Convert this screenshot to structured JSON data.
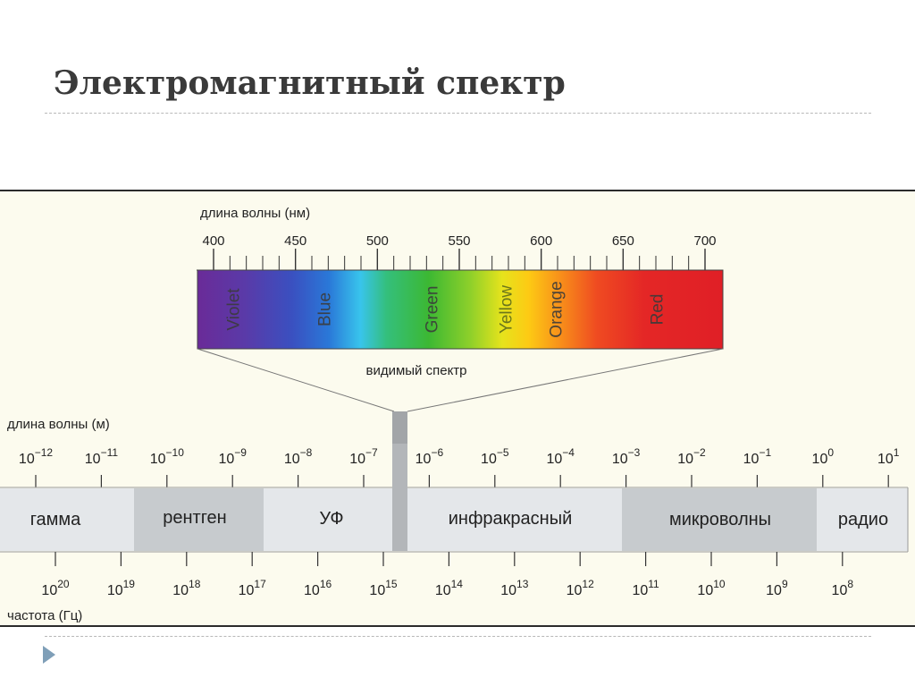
{
  "title": "Электромагнитный спектр",
  "visible": {
    "axis_label": "длина волны (нм)",
    "ticks": [
      "400",
      "450",
      "500",
      "550",
      "600",
      "650",
      "700"
    ],
    "colors": [
      "Violet",
      "Blue",
      "Green",
      "Yellow",
      "Orange",
      "Red"
    ],
    "caption": "видимый спектр"
  },
  "wavelength": {
    "axis_label": "длина волны (м)",
    "base": "10",
    "exponents": [
      "−12",
      "−11",
      "−10",
      "−9",
      "−8",
      "−7",
      "−6",
      "−5",
      "−4",
      "−3",
      "−2",
      "−1",
      "0",
      "1"
    ]
  },
  "bands": [
    "гамма",
    "рентген",
    "УФ",
    "инфракрасный",
    "микроволны",
    "радио"
  ],
  "frequency": {
    "axis_label": "частота (Гц)",
    "base": "10",
    "exponents": [
      "20",
      "19",
      "18",
      "17",
      "16",
      "15",
      "14",
      "13",
      "12",
      "11",
      "10",
      "9",
      "8"
    ]
  },
  "colors": {
    "band_light": "#e4e7ea",
    "band_dark": "#c7cbce",
    "connector": "#b3b6b9"
  }
}
